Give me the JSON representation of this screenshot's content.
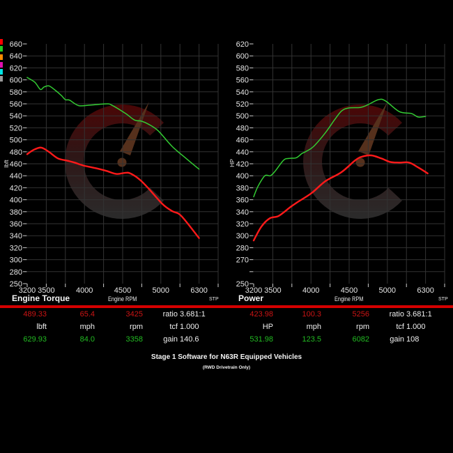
{
  "legend": {
    "swatches": [
      "#ff0000",
      "#22cc22",
      "#ff8c00",
      "#e010b0",
      "#00e5e5",
      "#9a9a9a"
    ]
  },
  "panels": [
    {
      "title": "Engine Torque",
      "x_axis_title": "Engine RPM",
      "correction": "STP"
    },
    {
      "title": "Power",
      "x_axis_title": "Engine RPM",
      "correction": "STP"
    }
  ],
  "colors": {
    "separator": "#d40000",
    "grid": "#333333",
    "red_curve": "#ff1a1a",
    "green_curve": "#33cc33"
  },
  "chart_data": [
    {
      "type": "line",
      "title": "Engine Torque",
      "xlabel": "Engine RPM",
      "ylabel": "lbft",
      "y_ticks": [
        "660",
        "640",
        "620",
        "600",
        "580",
        "560",
        "540",
        "520",
        "500",
        "480",
        "460",
        "440",
        "420",
        "400",
        "380",
        "360",
        "340",
        "320",
        "300",
        "280",
        "250"
      ],
      "y_max": 660,
      "y_step": 20,
      "ylim": [
        250,
        660
      ],
      "grid_columns": 10,
      "x_ticks": [
        {
          "label": "3200",
          "grid": 0
        },
        {
          "label": "3500",
          "grid": 1
        },
        {
          "label": "4000",
          "grid": 3
        },
        {
          "label": "4500",
          "grid": 5
        },
        {
          "label": "5000",
          "grid": 7
        },
        {
          "label": "6300",
          "grid": 9
        }
      ],
      "grid": true,
      "series": [
        {
          "name": "green",
          "color": "#33cc33",
          "points": [
            [
              3200,
              604
            ],
            [
              3320,
              596
            ],
            [
              3408,
              584
            ],
            [
              3463,
              588
            ],
            [
              3533,
              590
            ],
            [
              3605,
              584
            ],
            [
              3697,
              574
            ],
            [
              3750,
              567
            ],
            [
              3807,
              566
            ],
            [
              3925,
              557
            ],
            [
              4080,
              558
            ],
            [
              4290,
              560
            ],
            [
              4355,
              558
            ],
            [
              4537,
              544
            ],
            [
              4655,
              533
            ],
            [
              4747,
              531
            ],
            [
              4838,
              526
            ],
            [
              4965,
              515
            ],
            [
              5384,
              489
            ],
            [
              5858,
              469
            ],
            [
              6300,
              451
            ]
          ]
        },
        {
          "name": "red",
          "color": "#ff1a1a",
          "points": [
            [
              3200,
              476
            ],
            [
              3299,
              483
            ],
            [
              3419,
              487
            ],
            [
              3533,
              480
            ],
            [
              3652,
              469
            ],
            [
              3780,
              465
            ],
            [
              3870,
              462
            ],
            [
              3990,
              457
            ],
            [
              4172,
              452
            ],
            [
              4290,
              448
            ],
            [
              4418,
              443
            ],
            [
              4537,
              445
            ],
            [
              4600,
              444
            ],
            [
              4720,
              434
            ],
            [
              4838,
              419
            ],
            [
              5052,
              393
            ],
            [
              5384,
              381
            ],
            [
              5695,
              373
            ],
            [
              6300,
              336
            ]
          ]
        }
      ]
    },
    {
      "type": "line",
      "title": "Power",
      "xlabel": "Engine RPM",
      "ylabel": "HP",
      "y_ticks": [
        "620",
        "600",
        "580",
        "560",
        "540",
        "520",
        "500",
        "480",
        "460",
        "440",
        "420",
        "400",
        "380",
        "360",
        "340",
        "320",
        "300",
        "280",
        "270",
        "",
        "250"
      ],
      "y_max": 620,
      "y_step": 20,
      "ylim": [
        250,
        620
      ],
      "grid_columns": 10,
      "x_ticks": [
        {
          "label": "3200",
          "grid": 0
        },
        {
          "label": "3500",
          "grid": 1
        },
        {
          "label": "4000",
          "grid": 3
        },
        {
          "label": "4500",
          "grid": 5
        },
        {
          "label": "5000",
          "grid": 7
        },
        {
          "label": "6300",
          "grid": 9
        }
      ],
      "grid": true,
      "series": [
        {
          "name": "green",
          "color": "#33cc33",
          "points": [
            [
              3200,
              365
            ],
            [
              3266,
              382
            ],
            [
              3375,
              400
            ],
            [
              3463,
              400
            ],
            [
              3533,
              408
            ],
            [
              3642,
              426
            ],
            [
              3715,
              429
            ],
            [
              3807,
              430
            ],
            [
              3880,
              437
            ],
            [
              3942,
              441
            ],
            [
              4035,
              449
            ],
            [
              4190,
              472
            ],
            [
              4307,
              493
            ],
            [
              4400,
              508
            ],
            [
              4491,
              513
            ],
            [
              4645,
              514
            ],
            [
              4737,
              518
            ],
            [
              4883,
              527
            ],
            [
              4974,
              525
            ],
            [
              5409,
              507
            ],
            [
              5813,
              504
            ],
            [
              6047,
              498
            ],
            [
              6300,
              499
            ]
          ]
        },
        {
          "name": "red",
          "color": "#ff1a1a",
          "points": [
            [
              3200,
              292
            ],
            [
              3320,
              315
            ],
            [
              3452,
              329
            ],
            [
              3578,
              333
            ],
            [
              3733,
              348
            ],
            [
              3825,
              356
            ],
            [
              4007,
              371
            ],
            [
              4190,
              391
            ],
            [
              4400,
              406
            ],
            [
              4582,
              426
            ],
            [
              4673,
              432
            ],
            [
              4792,
              434
            ],
            [
              4920,
              429
            ],
            [
              5098,
              423
            ],
            [
              5409,
              422
            ],
            [
              5741,
              422
            ],
            [
              6047,
              414
            ],
            [
              6370,
              404
            ]
          ]
        }
      ]
    }
  ],
  "readouts": [
    {
      "rows": [
        {
          "color": "#cc1414",
          "values": [
            "489.33",
            "65.4",
            "3425"
          ],
          "label": "ratio",
          "value": "3.681:1"
        },
        {
          "color": "#f0f0f0",
          "values": [
            "lbft",
            "mph",
            "rpm"
          ],
          "label": "tcf",
          "value": "1.000"
        },
        {
          "color": "#22bb22",
          "values": [
            "629.93",
            "84.0",
            "3358"
          ],
          "label": "gain",
          "value": "140.6"
        }
      ]
    },
    {
      "rows": [
        {
          "color": "#cc1414",
          "values": [
            "423.98",
            "100.3",
            "5256"
          ],
          "label": "ratio",
          "value": "3.681:1"
        },
        {
          "color": "#f0f0f0",
          "values": [
            "HP",
            "mph",
            "rpm"
          ],
          "label": "tcf",
          "value": "1.000"
        },
        {
          "color": "#22bb22",
          "values": [
            "531.98",
            "123.5",
            "6082"
          ],
          "label": "gain",
          "value": "108"
        }
      ]
    }
  ],
  "footer": {
    "title": "Stage 1 Software for N63R Equipped Vehicles",
    "subtitle": "(RWD Drivetrain Only)"
  }
}
